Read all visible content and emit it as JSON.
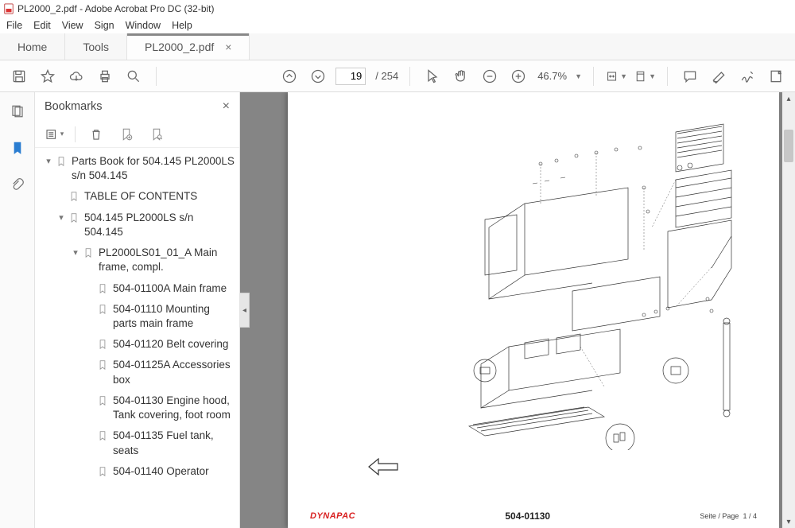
{
  "window": {
    "title": "PL2000_2.pdf - Adobe Acrobat Pro DC (32-bit)"
  },
  "menu": {
    "items": [
      "File",
      "Edit",
      "View",
      "Sign",
      "Window",
      "Help"
    ]
  },
  "tabs": {
    "home": "Home",
    "tools": "Tools",
    "doc": "PL2000_2.pdf"
  },
  "toolbar": {
    "page_current": "19",
    "page_total": "/ 254",
    "zoom": "46.7%"
  },
  "panel": {
    "title": "Bookmarks"
  },
  "bookmarks": [
    {
      "indent": 0,
      "toggle": "▾",
      "label": "Parts Book for 504.145 PL2000LS s/n 504.145"
    },
    {
      "indent": 1,
      "toggle": "",
      "label": "TABLE OF CONTENTS"
    },
    {
      "indent": 1,
      "toggle": "▾",
      "label": "504.145 PL2000LS s/n 504.145"
    },
    {
      "indent": 2,
      "toggle": "▾",
      "label": "PL2000LS01_01_A Main frame, compl."
    },
    {
      "indent": 3,
      "toggle": "",
      "label": "504-01100A Main frame"
    },
    {
      "indent": 3,
      "toggle": "",
      "label": "504-01110 Mounting parts main frame"
    },
    {
      "indent": 3,
      "toggle": "",
      "label": "504-01120 Belt covering"
    },
    {
      "indent": 3,
      "toggle": "",
      "label": "504-01125A Accessories box"
    },
    {
      "indent": 3,
      "toggle": "",
      "label": "504-01130 Engine hood, Tank covering, foot room"
    },
    {
      "indent": 3,
      "toggle": "",
      "label": "504-01135 Fuel tank, seats"
    },
    {
      "indent": 3,
      "toggle": "",
      "label": "504-01140 Operator"
    }
  ],
  "page": {
    "brand": "DYNAPAC",
    "partnum": "504-01130",
    "pagelabel": "Seite / Page",
    "pagenum": "1 / 4"
  },
  "colors": {
    "accent_blue": "#2a7dd1",
    "brand_red": "#d82020",
    "viewer_bg": "#858585"
  }
}
